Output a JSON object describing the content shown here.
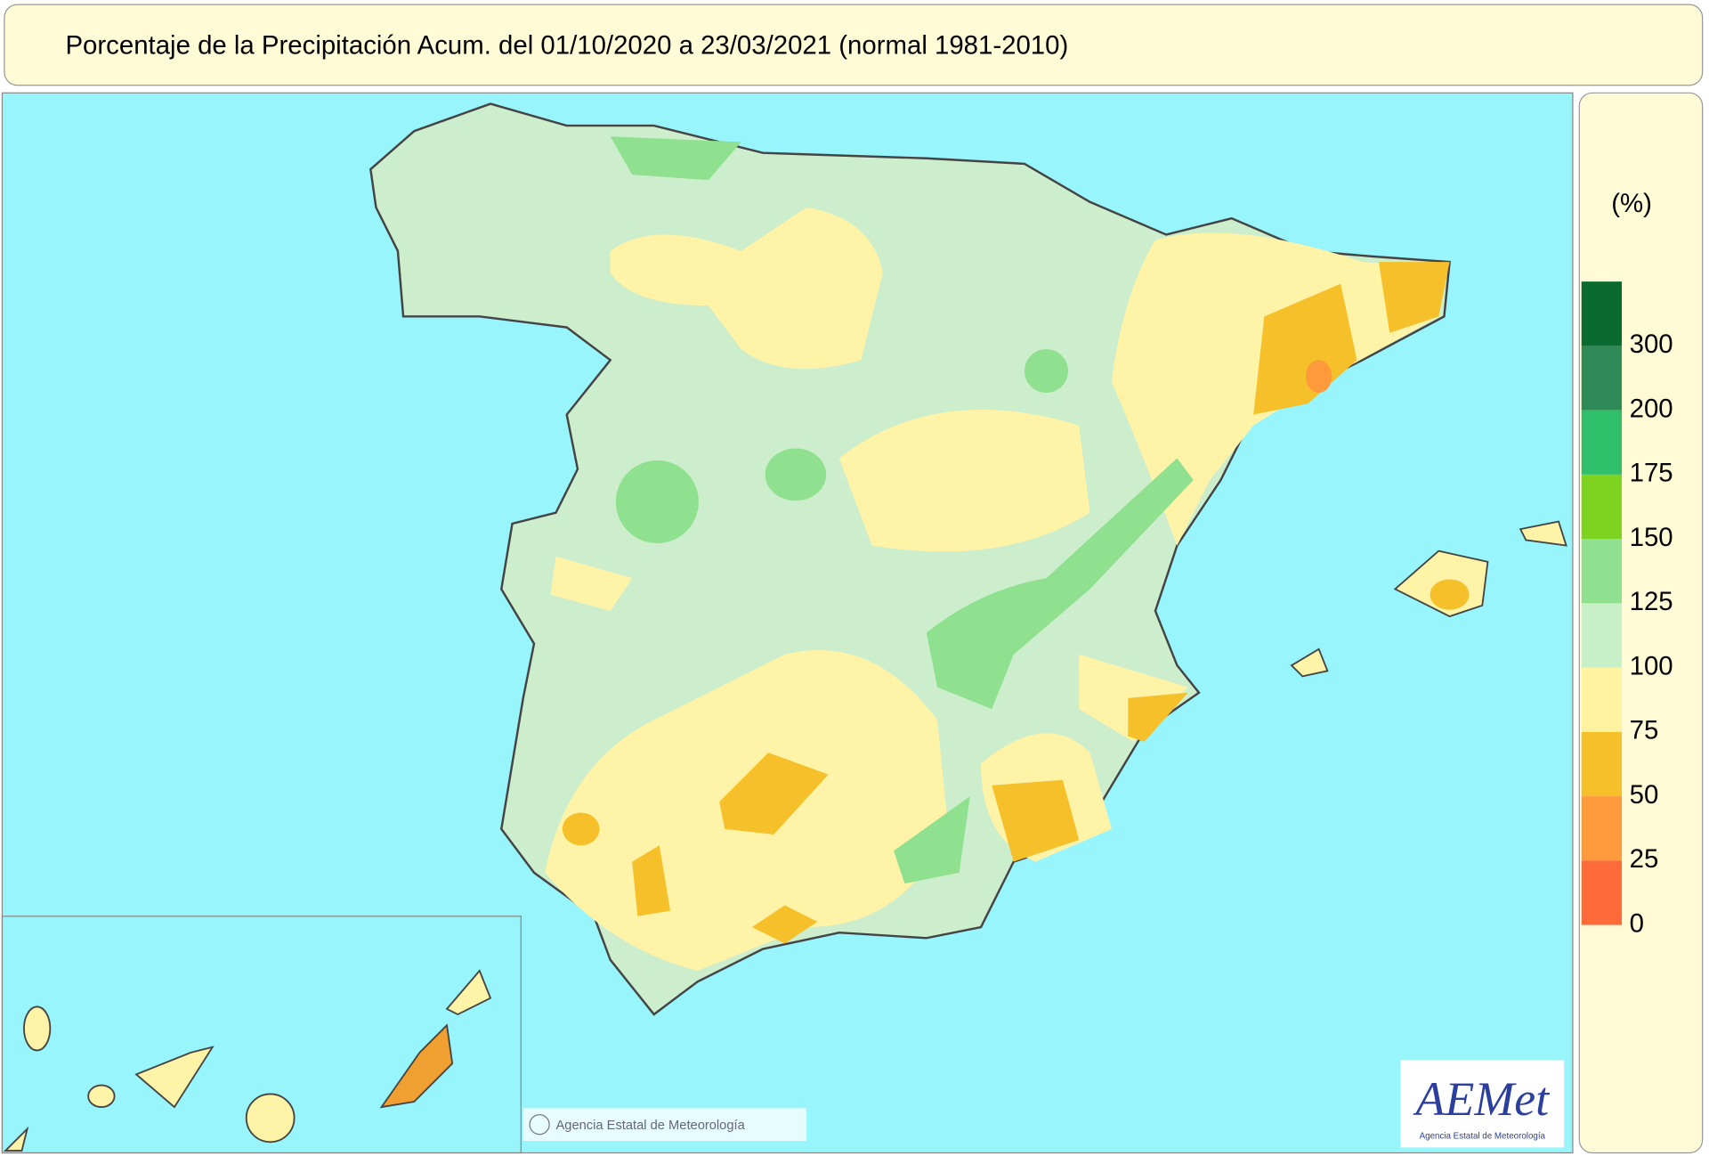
{
  "header": {
    "title": "Porcentaje de la Precipitación Acum. del 01/10/2020 a  23/03/2021  (normal 1981-2010)"
  },
  "legend": {
    "unit": "(%)",
    "labels": [
      300,
      200,
      175,
      150,
      125,
      100,
      75,
      50,
      25,
      0
    ],
    "colors": [
      "#0a6b30",
      "#2e8b57",
      "#2fbf6a",
      "#7ed321",
      "#8fe08f",
      "#c8f0c8",
      "#fff3a0",
      "#f5c02a",
      "#ff9a3c",
      "#ff6a3a"
    ]
  },
  "footer": {
    "credit": "Agencia Estatal de Meteorología",
    "logo": "AEMet",
    "logo_caption": "Agencia Estatal de Meteorología"
  }
}
